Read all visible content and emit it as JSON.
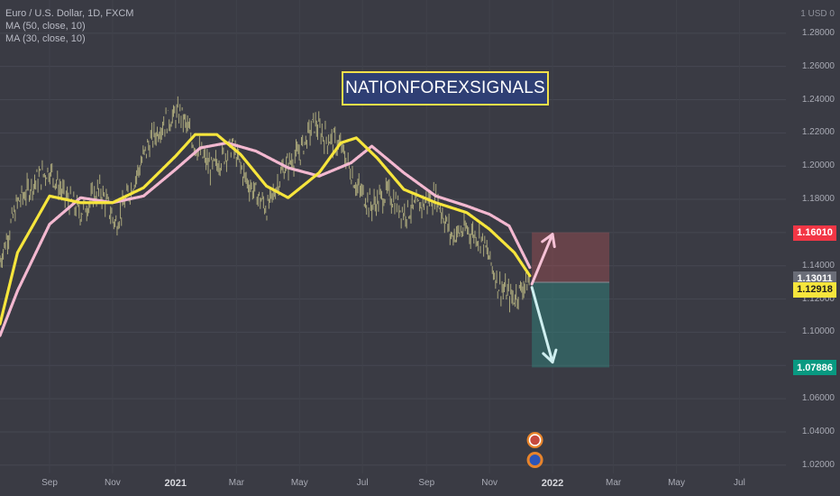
{
  "legend": {
    "symbol_line": "Euro / U.S. Dollar, 1D, FXCM",
    "ma1": "MA (50, close, 10)",
    "ma2": "MA (30, close, 10)"
  },
  "banner": {
    "text": "NATIONFOREXSIGNALS"
  },
  "colors": {
    "background": "#3a3b44",
    "ma50": "#f6e53c",
    "ma30": "#f3b8d0",
    "candles": "#c8c48a",
    "stop_zone": "#e05a5a",
    "target_zone": "#2f8a80",
    "badge_stop": "#f23645",
    "badge_current": "#6a6d78",
    "badge_ma": "#f6e53c",
    "badge_target": "#089981"
  },
  "chart_data": {
    "type": "line",
    "axis_currency_label": "USD",
    "ylim": [
      1.015,
      1.3
    ],
    "y_ticks": [
      "1.28000",
      "1.26000",
      "1.24000",
      "1.22000",
      "1.20000",
      "1.18000",
      "1.16000",
      "1.14000",
      "1.12000",
      "1.10000",
      "1.08000",
      "1.06000",
      "1.04000",
      "1.02000"
    ],
    "x_tick_labels": [
      "Sep",
      "Nov",
      "2021",
      "Mar",
      "May",
      "Jul",
      "Sep",
      "Nov",
      "2022",
      "Mar",
      "May",
      "Jul"
    ],
    "x_tick_dates": [
      "2020-09-01",
      "2020-11-01",
      "2021-01-01",
      "2021-03-01",
      "2021-05-01",
      "2021-07-01",
      "2021-09-01",
      "2021-11-01",
      "2022-01-01",
      "2022-03-01",
      "2022-05-01",
      "2022-07-01"
    ],
    "x_year_labels": [
      "2021",
      "2022"
    ],
    "x_range": [
      "2020-07-15",
      "2022-08-15"
    ],
    "series": [
      {
        "name": "Price",
        "dates": [
          "2020-07-15",
          "2020-08-01",
          "2020-08-20",
          "2020-09-01",
          "2020-09-15",
          "2020-10-01",
          "2020-10-20",
          "2020-11-04",
          "2020-11-20",
          "2020-12-05",
          "2020-12-20",
          "2021-01-06",
          "2021-01-20",
          "2021-02-05",
          "2021-02-25",
          "2021-03-10",
          "2021-03-31",
          "2021-04-15",
          "2021-05-01",
          "2021-05-15",
          "2021-05-25",
          "2021-06-10",
          "2021-06-25",
          "2021-07-10",
          "2021-07-25",
          "2021-08-10",
          "2021-08-25",
          "2021-09-10",
          "2021-09-25",
          "2021-10-10",
          "2021-10-25",
          "2021-11-10",
          "2021-11-24",
          "2021-12-05",
          "2021-12-10"
        ],
        "values": [
          1.143,
          1.178,
          1.192,
          1.198,
          1.182,
          1.172,
          1.186,
          1.165,
          1.188,
          1.212,
          1.226,
          1.232,
          1.212,
          1.198,
          1.212,
          1.192,
          1.174,
          1.198,
          1.208,
          1.226,
          1.218,
          1.212,
          1.188,
          1.176,
          1.184,
          1.172,
          1.176,
          1.182,
          1.158,
          1.162,
          1.156,
          1.128,
          1.12,
          1.129,
          1.13
        ]
      },
      {
        "name": "MA (30, close, 10)",
        "dates": [
          "2020-07-15",
          "2020-08-01",
          "2020-09-01",
          "2020-10-01",
          "2020-11-01",
          "2020-12-01",
          "2021-01-01",
          "2021-01-25",
          "2021-02-20",
          "2021-03-20",
          "2021-04-20",
          "2021-05-20",
          "2021-06-20",
          "2021-07-10",
          "2021-08-10",
          "2021-09-10",
          "2021-10-10",
          "2021-11-01",
          "2021-11-20",
          "2021-12-10"
        ],
        "values": [
          1.098,
          1.125,
          1.165,
          1.181,
          1.178,
          1.182,
          1.198,
          1.211,
          1.214,
          1.209,
          1.199,
          1.194,
          1.202,
          1.212,
          1.196,
          1.182,
          1.176,
          1.171,
          1.164,
          1.139
        ]
      },
      {
        "name": "MA (50, close, 10)",
        "dates": [
          "2020-07-15",
          "2020-08-01",
          "2020-09-01",
          "2020-10-01",
          "2020-11-01",
          "2020-12-01",
          "2021-01-01",
          "2021-01-20",
          "2021-02-10",
          "2021-03-05",
          "2021-03-30",
          "2021-04-20",
          "2021-05-20",
          "2021-06-10",
          "2021-06-25",
          "2021-07-15",
          "2021-08-10",
          "2021-09-10",
          "2021-10-10",
          "2021-11-01",
          "2021-11-25",
          "2021-12-10"
        ],
        "values": [
          1.105,
          1.148,
          1.182,
          1.178,
          1.178,
          1.187,
          1.206,
          1.219,
          1.219,
          1.207,
          1.188,
          1.181,
          1.196,
          1.214,
          1.217,
          1.205,
          1.186,
          1.178,
          1.172,
          1.162,
          1.148,
          1.134
        ]
      }
    ],
    "price_scale_labels": [
      {
        "text": "1.16010",
        "value": 1.1601
      },
      {
        "text": "1.13011",
        "value": 1.13011
      },
      {
        "text": "1.12918",
        "value": 1.12918
      },
      {
        "text": "1.07886",
        "value": 1.07886
      }
    ],
    "position": {
      "entry": 1.13011,
      "stop": 1.1601,
      "target": 1.07886,
      "start_date": "2021-12-12",
      "end_date": "2022-02-25"
    },
    "arrows": [
      {
        "from_date": "2021-12-12",
        "from_value": 1.129,
        "to_date": "2022-01-01",
        "to_value": 1.159,
        "color": "#f6c2d6"
      },
      {
        "from_date": "2021-12-12",
        "from_value": 1.127,
        "to_date": "2022-01-01",
        "to_value": 1.082,
        "color": "#cfeff0"
      }
    ],
    "grid": true,
    "legend_position": "top-left"
  }
}
